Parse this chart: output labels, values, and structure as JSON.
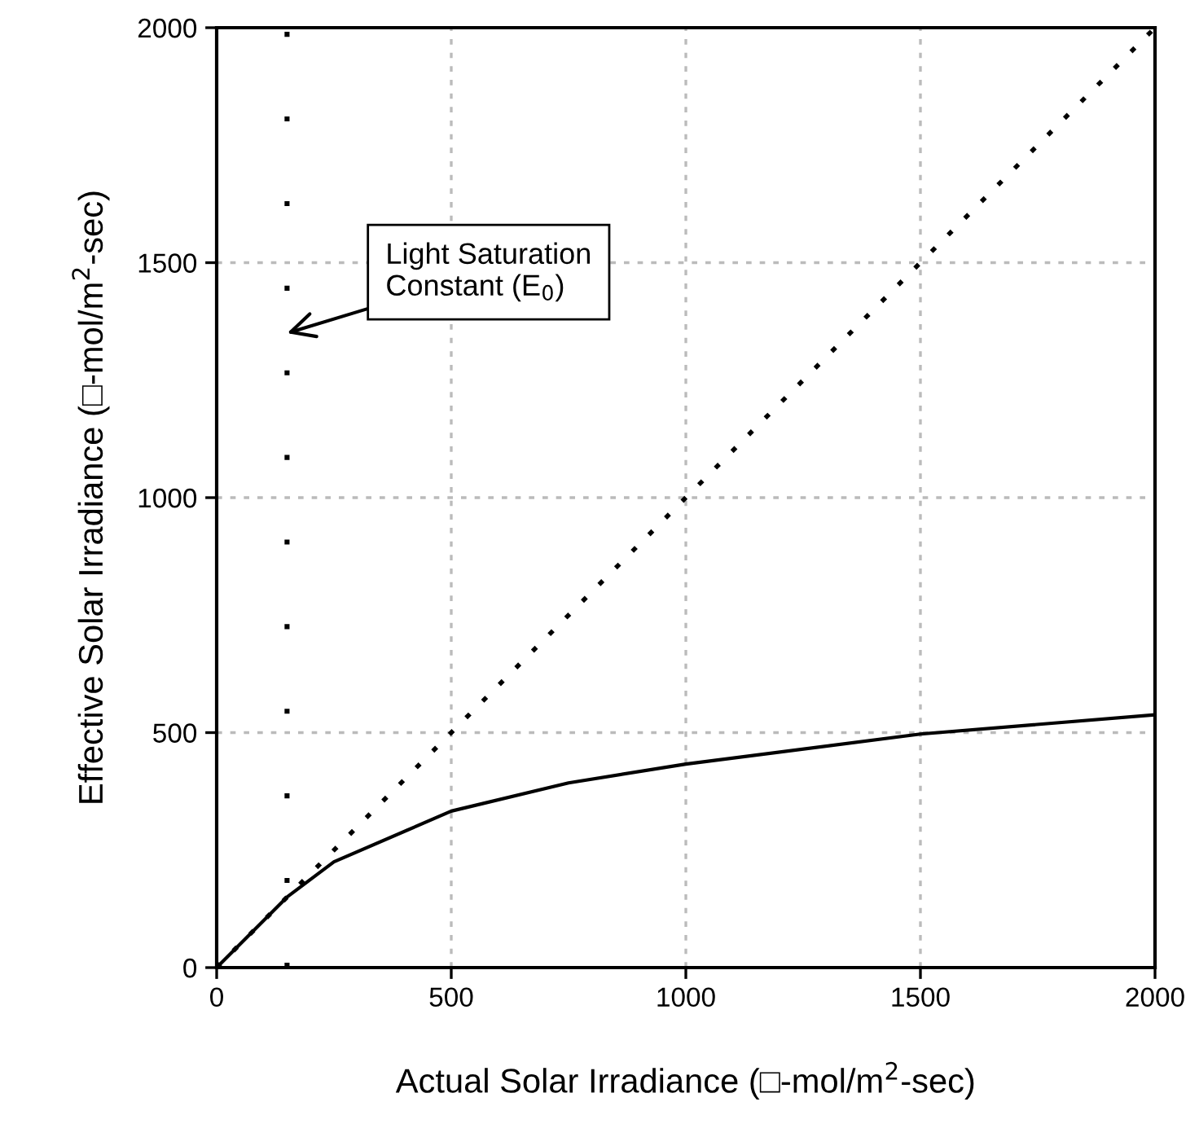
{
  "chart_data": {
    "type": "line",
    "xlabel": "Actual Solar Irradiance (□-mol/m$^{2}$-sec)",
    "ylabel": "Effective Solar Irradiance (□-mol/m$^{2}$-sec)",
    "series": [
      {
        "color": "#000000",
        "line_style": "solid",
        "x": [
          0,
          150,
          250,
          500,
          750,
          1000,
          1500,
          2000
        ],
        "values": [
          0,
          150,
          225,
          333,
          393,
          433,
          497,
          538
        ]
      },
      {
        "color": "#000000",
        "line_style": "dotted",
        "x": [
          0,
          2000
        ],
        "values": [
          0,
          2000
        ]
      }
    ],
    "ref_lines": [
      {
        "axis": "x",
        "value": 150,
        "color": "#000000",
        "line_style": "dotted"
      }
    ],
    "annotations": [
      {
        "text": "Light Saturation\nConstant (E$_{0}$)",
        "x": 150,
        "y": 1350
      }
    ],
    "xlim": [
      0,
      2000
    ],
    "xticks": [
      0,
      500,
      1000,
      1500,
      2000
    ],
    "ylim": [
      0,
      2000
    ],
    "yticks": [
      0,
      500,
      1000,
      1500,
      2000
    ],
    "grid": true,
    "marker": "none"
  }
}
